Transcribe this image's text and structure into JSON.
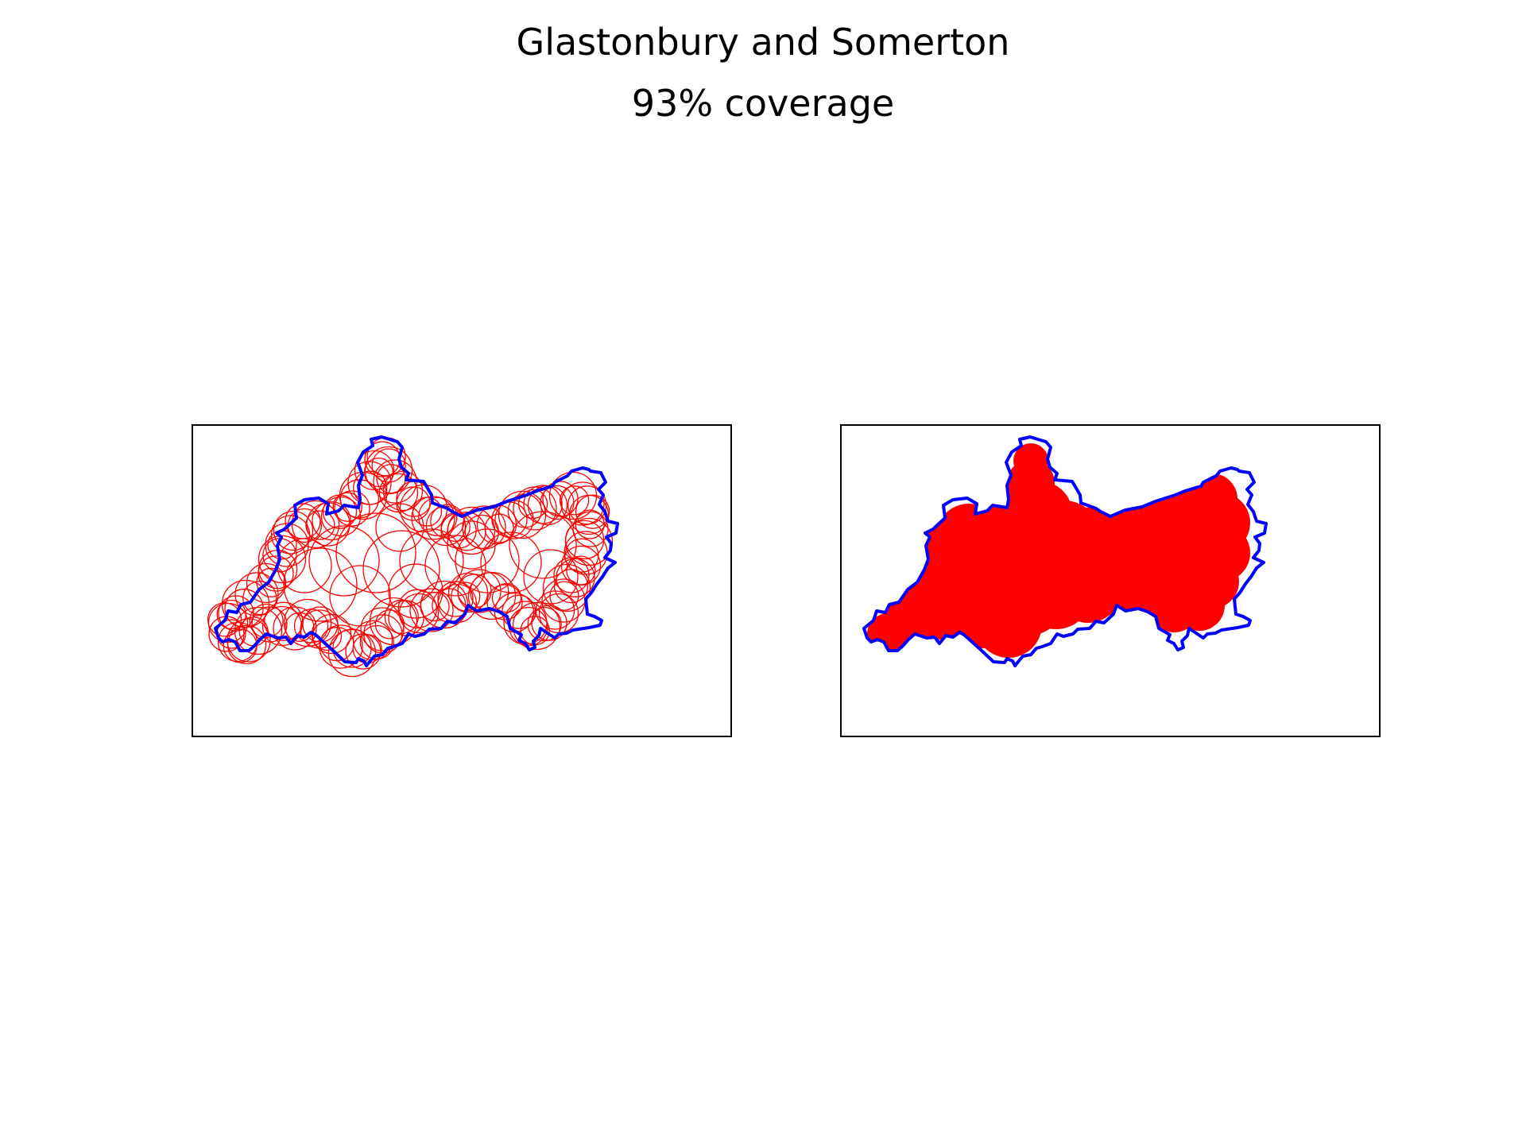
{
  "figure": {
    "title": "Glastonbury and Somerton",
    "subtitle": "93% coverage"
  },
  "colors": {
    "boundary": "#0000ff",
    "coverage": "#ff0000",
    "frame": "#000000",
    "background": "#ffffff"
  },
  "panels": [
    {
      "name": "coverage-circles",
      "style": "circle-outlines"
    },
    {
      "name": "coverage-union",
      "style": "filled"
    }
  ]
}
